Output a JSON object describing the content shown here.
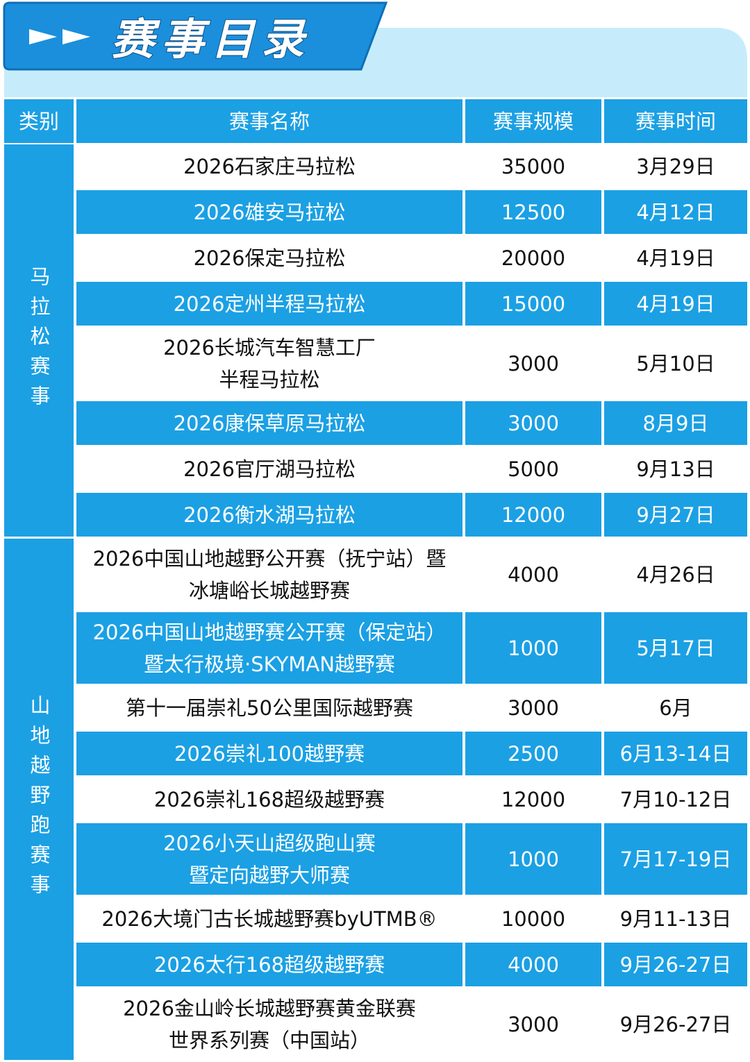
{
  "header": {
    "title": "赛事目录"
  },
  "table": {
    "columns": [
      "类别",
      "赛事名称",
      "赛事规模",
      "赛事时间"
    ],
    "groups": [
      {
        "category": "马拉松赛事",
        "rows": [
          {
            "name": [
              "2026石家庄马拉松"
            ],
            "scale": "35000",
            "date": "3月29日"
          },
          {
            "name": [
              "2026雄安马拉松"
            ],
            "scale": "12500",
            "date": "4月12日"
          },
          {
            "name": [
              "2026保定马拉松"
            ],
            "scale": "20000",
            "date": "4月19日"
          },
          {
            "name": [
              "2026定州半程马拉松"
            ],
            "scale": "15000",
            "date": "4月19日"
          },
          {
            "name": [
              "2026长城汽车智慧工厂",
              "半程马拉松"
            ],
            "scale": "3000",
            "date": "5月10日"
          },
          {
            "name": [
              "2026康保草原马拉松"
            ],
            "scale": "3000",
            "date": "8月9日"
          },
          {
            "name": [
              "2026官厅湖马拉松"
            ],
            "scale": "5000",
            "date": "9月13日"
          },
          {
            "name": [
              "2026衡水湖马拉松"
            ],
            "scale": "12000",
            "date": "9月27日"
          }
        ]
      },
      {
        "category": "山地越野跑赛事",
        "rows": [
          {
            "name": [
              "2026中国山地越野公开赛（抚宁站）暨",
              "冰塘峪长城越野赛"
            ],
            "scale": "4000",
            "date": "4月26日"
          },
          {
            "name": [
              "2026中国山地越野赛公开赛（保定站）",
              "暨太行极境·SKYMAN越野赛"
            ],
            "scale": "1000",
            "date": "5月17日"
          },
          {
            "name": [
              "第十一届崇礼50公里国际越野赛"
            ],
            "scale": "3000",
            "date": "6月"
          },
          {
            "name": [
              "2026崇礼100越野赛"
            ],
            "scale": "2500",
            "date": "6月13-14日"
          },
          {
            "name": [
              "2026崇礼168超级越野赛"
            ],
            "scale": "12000",
            "date": "7月10-12日"
          },
          {
            "name": [
              "2026小天山超级跑山赛",
              "暨定向越野大师赛"
            ],
            "scale": "1000",
            "date": "7月17-19日"
          },
          {
            "name": [
              "2026大境门古长城越野赛byUTMB®"
            ],
            "scale": "10000",
            "date": "9月11-13日"
          },
          {
            "name": [
              "2026太行168超级越野赛"
            ],
            "scale": "4000",
            "date": "9月26-27日"
          },
          {
            "name": [
              "2026金山岭长城越野赛黄金联赛",
              "世界系列赛（中国站）"
            ],
            "scale": "3000",
            "date": "9月26-27日"
          }
        ]
      }
    ]
  }
}
